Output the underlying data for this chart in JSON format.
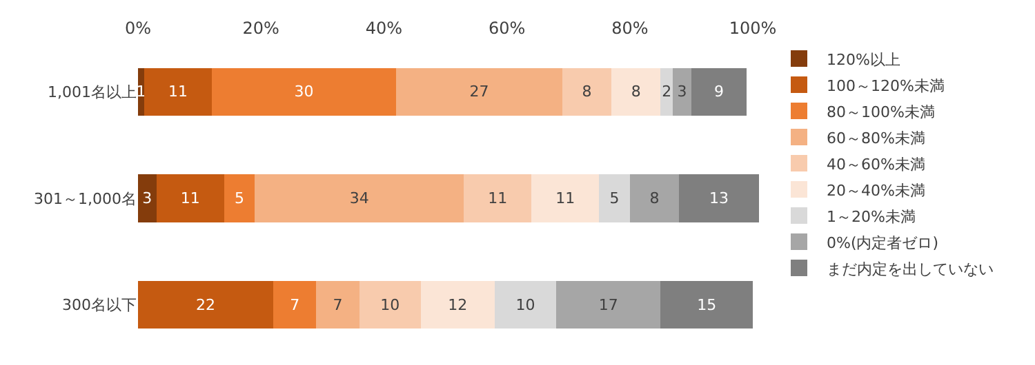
{
  "chart_data": {
    "type": "bar",
    "orientation": "horizontal",
    "stacked": true,
    "categories": [
      "1,001名以上",
      "301～1,000名",
      "300名以下"
    ],
    "xlim": [
      0,
      101
    ],
    "xticks": [
      {
        "value": 0,
        "label": "0%"
      },
      {
        "value": 20,
        "label": "20%"
      },
      {
        "value": 40,
        "label": "40%"
      },
      {
        "value": 60,
        "label": "60%"
      },
      {
        "value": 80,
        "label": "80%"
      },
      {
        "value": 100,
        "label": "100%"
      }
    ],
    "legend": "right",
    "grid": false,
    "series": [
      {
        "name": "120%以上",
        "color": "#843c0c",
        "values": [
          1,
          3,
          0
        ],
        "value_labels": [
          "1",
          "3",
          null
        ]
      },
      {
        "name": "100～120%未満",
        "color": "#c55a11",
        "values": [
          11,
          11,
          22
        ],
        "value_labels": [
          "11",
          "11",
          "22"
        ]
      },
      {
        "name": "80～100%未満",
        "color": "#ed7d31",
        "values": [
          30,
          5,
          7
        ],
        "value_labels": [
          "30",
          "5",
          "7"
        ]
      },
      {
        "name": "60～80%未満",
        "color": "#f4b183",
        "values": [
          27,
          34,
          7
        ],
        "value_labels": [
          "27",
          "34",
          "7"
        ]
      },
      {
        "name": "40～60%未満",
        "color": "#f8cbad",
        "values": [
          8,
          11,
          10
        ],
        "value_labels": [
          "8",
          "11",
          "10"
        ]
      },
      {
        "name": "20～40%未満",
        "color": "#fbe5d6",
        "values": [
          8,
          11,
          12
        ],
        "value_labels": [
          "8",
          "11",
          "12"
        ]
      },
      {
        "name": "1～20%未満",
        "color": "#d9d9d9",
        "values": [
          2,
          5,
          10
        ],
        "value_labels": [
          "2",
          "5",
          "10"
        ]
      },
      {
        "name": "0%(内定者ゼロ)",
        "color": "#a6a6a6",
        "values": [
          3,
          8,
          17
        ],
        "value_labels": [
          "3",
          "8",
          "17"
        ]
      },
      {
        "name": "まだ内定を出していない",
        "color": "#7f7f7f",
        "values": [
          9,
          13,
          15
        ],
        "value_labels": [
          "9",
          "13",
          "15"
        ]
      }
    ]
  }
}
